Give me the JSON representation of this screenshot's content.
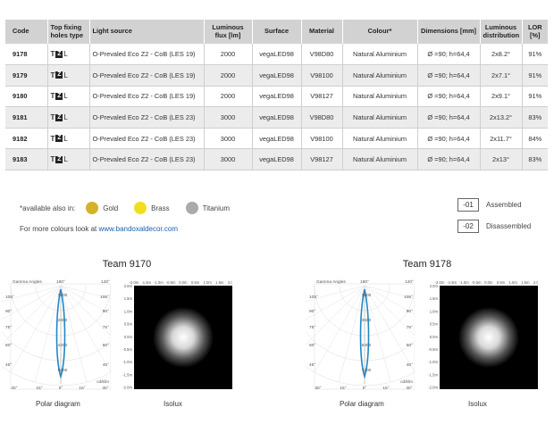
{
  "table": {
    "headers": {
      "code": "Code",
      "holes": "Top fixing holes type",
      "light_source": "Light source",
      "flux": "Luminous flux [lm]",
      "surface": "Surface",
      "material": "Material",
      "colour": "Colour*",
      "dimensions": "Dimensions [mm]",
      "distribution": "Luminous distribution",
      "lor": "LOR [%]"
    },
    "rows": [
      {
        "code": "9178",
        "holes_t": "T",
        "holes_z": "Z",
        "holes_l": "L",
        "light_source": "O-Prevaled Eco Z2 - CoB (LES 19)",
        "flux": "2000",
        "surface": "vegaLED98",
        "material": "V98D80",
        "colour": "Natural Aluminium",
        "dimensions": "Ø =90; h=64,4",
        "distribution": "2x8.2°",
        "lor": "91%"
      },
      {
        "code": "9179",
        "holes_t": "T",
        "holes_z": "Z",
        "holes_l": "L",
        "light_source": "O-Prevaled Eco Z2 - CoB (LES 19)",
        "flux": "2000",
        "surface": "vegaLED98",
        "material": "V98100",
        "colour": "Natural Aluminium",
        "dimensions": "Ø =90; h=64,4",
        "distribution": "2x7.1°",
        "lor": "91%"
      },
      {
        "code": "9180",
        "holes_t": "T",
        "holes_z": "Z",
        "holes_l": "L",
        "light_source": "O-Prevaled Eco Z2 - CoB (LES 19)",
        "flux": "2000",
        "surface": "vegaLED98",
        "material": "V98127",
        "colour": "Natural Aluminium",
        "dimensions": "Ø =90; h=64,4",
        "distribution": "2x9.1°",
        "lor": "91%"
      },
      {
        "code": "9181",
        "holes_t": "T",
        "holes_z": "Z",
        "holes_l": "L",
        "light_source": "O-Prevaled Eco Z2 - CoB (LES 23)",
        "flux": "3000",
        "surface": "vegaLED98",
        "material": "V98D80",
        "colour": "Natural Aluminium",
        "dimensions": "Ø =90; h=64,4",
        "distribution": "2x13.2°",
        "lor": "83%"
      },
      {
        "code": "9182",
        "holes_t": "T",
        "holes_z": "Z",
        "holes_l": "L",
        "light_source": "O-Prevaled Eco Z2 - CoB (LES 23)",
        "flux": "3000",
        "surface": "vegaLED98",
        "material": "V98100",
        "colour": "Natural Aluminium",
        "dimensions": "Ø =90; h=64,4",
        "distribution": "2x11.7°",
        "lor": "84%"
      },
      {
        "code": "9183",
        "holes_t": "T",
        "holes_z": "Z",
        "holes_l": "L",
        "light_source": "O-Prevaled Eco Z2 - CoB (LES 23)",
        "flux": "3000",
        "surface": "vegaLED98",
        "material": "V98127",
        "colour": "Natural Aluminium",
        "dimensions": "Ø =90; h=64,4",
        "distribution": "2x13°",
        "lor": "83%"
      }
    ]
  },
  "availability": {
    "label": "*available also in:",
    "colours": [
      {
        "name": "Gold",
        "hex": "#d6b22a"
      },
      {
        "name": "Brass",
        "hex": "#f2de1f"
      },
      {
        "name": "Titanium",
        "hex": "#aaaaaa"
      }
    ],
    "more_text": "For more colours look at",
    "more_link": "www.bandoxaldecor.com"
  },
  "assembly_legend": [
    {
      "code": "-01",
      "label": "Assembled"
    },
    {
      "code": "-02",
      "label": "Disassembled"
    }
  ],
  "photometry": [
    {
      "title": "Team 9170",
      "polar_caption": "Polar diagram",
      "isolux_caption": "Isolux",
      "polar_gamma_label": "Gamma Angles",
      "polar_unit": "cd/klm",
      "polar_angles_top": [
        "180°",
        "120°"
      ],
      "polar_angles_left": [
        "105°",
        "90°",
        "75°",
        "60°",
        "45°"
      ],
      "polar_angles_bottom": [
        "30°",
        "15°",
        "0°",
        "15°",
        "30°"
      ],
      "polar_intensity_labels": [
        "1400",
        "2800",
        "4200",
        "5600"
      ],
      "isolux_axis_labels": [
        "-2.0m",
        "-1.5m",
        "-1.0m",
        "-0.5m",
        "0.0m",
        "0.5m",
        "1.0m",
        "1.5m",
        "2.0m"
      ],
      "beam_color": "#1e88c8"
    },
    {
      "title": "Team 9178",
      "polar_caption": "Polar diagram",
      "isolux_caption": "Isolux",
      "polar_gamma_label": "Gamma Angles",
      "polar_unit": "cd/klm",
      "polar_angles_top": [
        "180°",
        "120°"
      ],
      "polar_angles_left": [
        "105°",
        "90°",
        "75°",
        "60°",
        "45°"
      ],
      "polar_angles_bottom": [
        "30°",
        "15°",
        "0°",
        "15°",
        "30°"
      ],
      "polar_intensity_labels": [
        "1800",
        "3600",
        "5400",
        "7200"
      ],
      "isolux_axis_labels": [
        "-2.0m",
        "-1.5m",
        "-1.0m",
        "-0.5m",
        "0.0m",
        "0.5m",
        "1.0m",
        "1.5m",
        "2.0m"
      ],
      "beam_color": "#1e88c8"
    }
  ]
}
